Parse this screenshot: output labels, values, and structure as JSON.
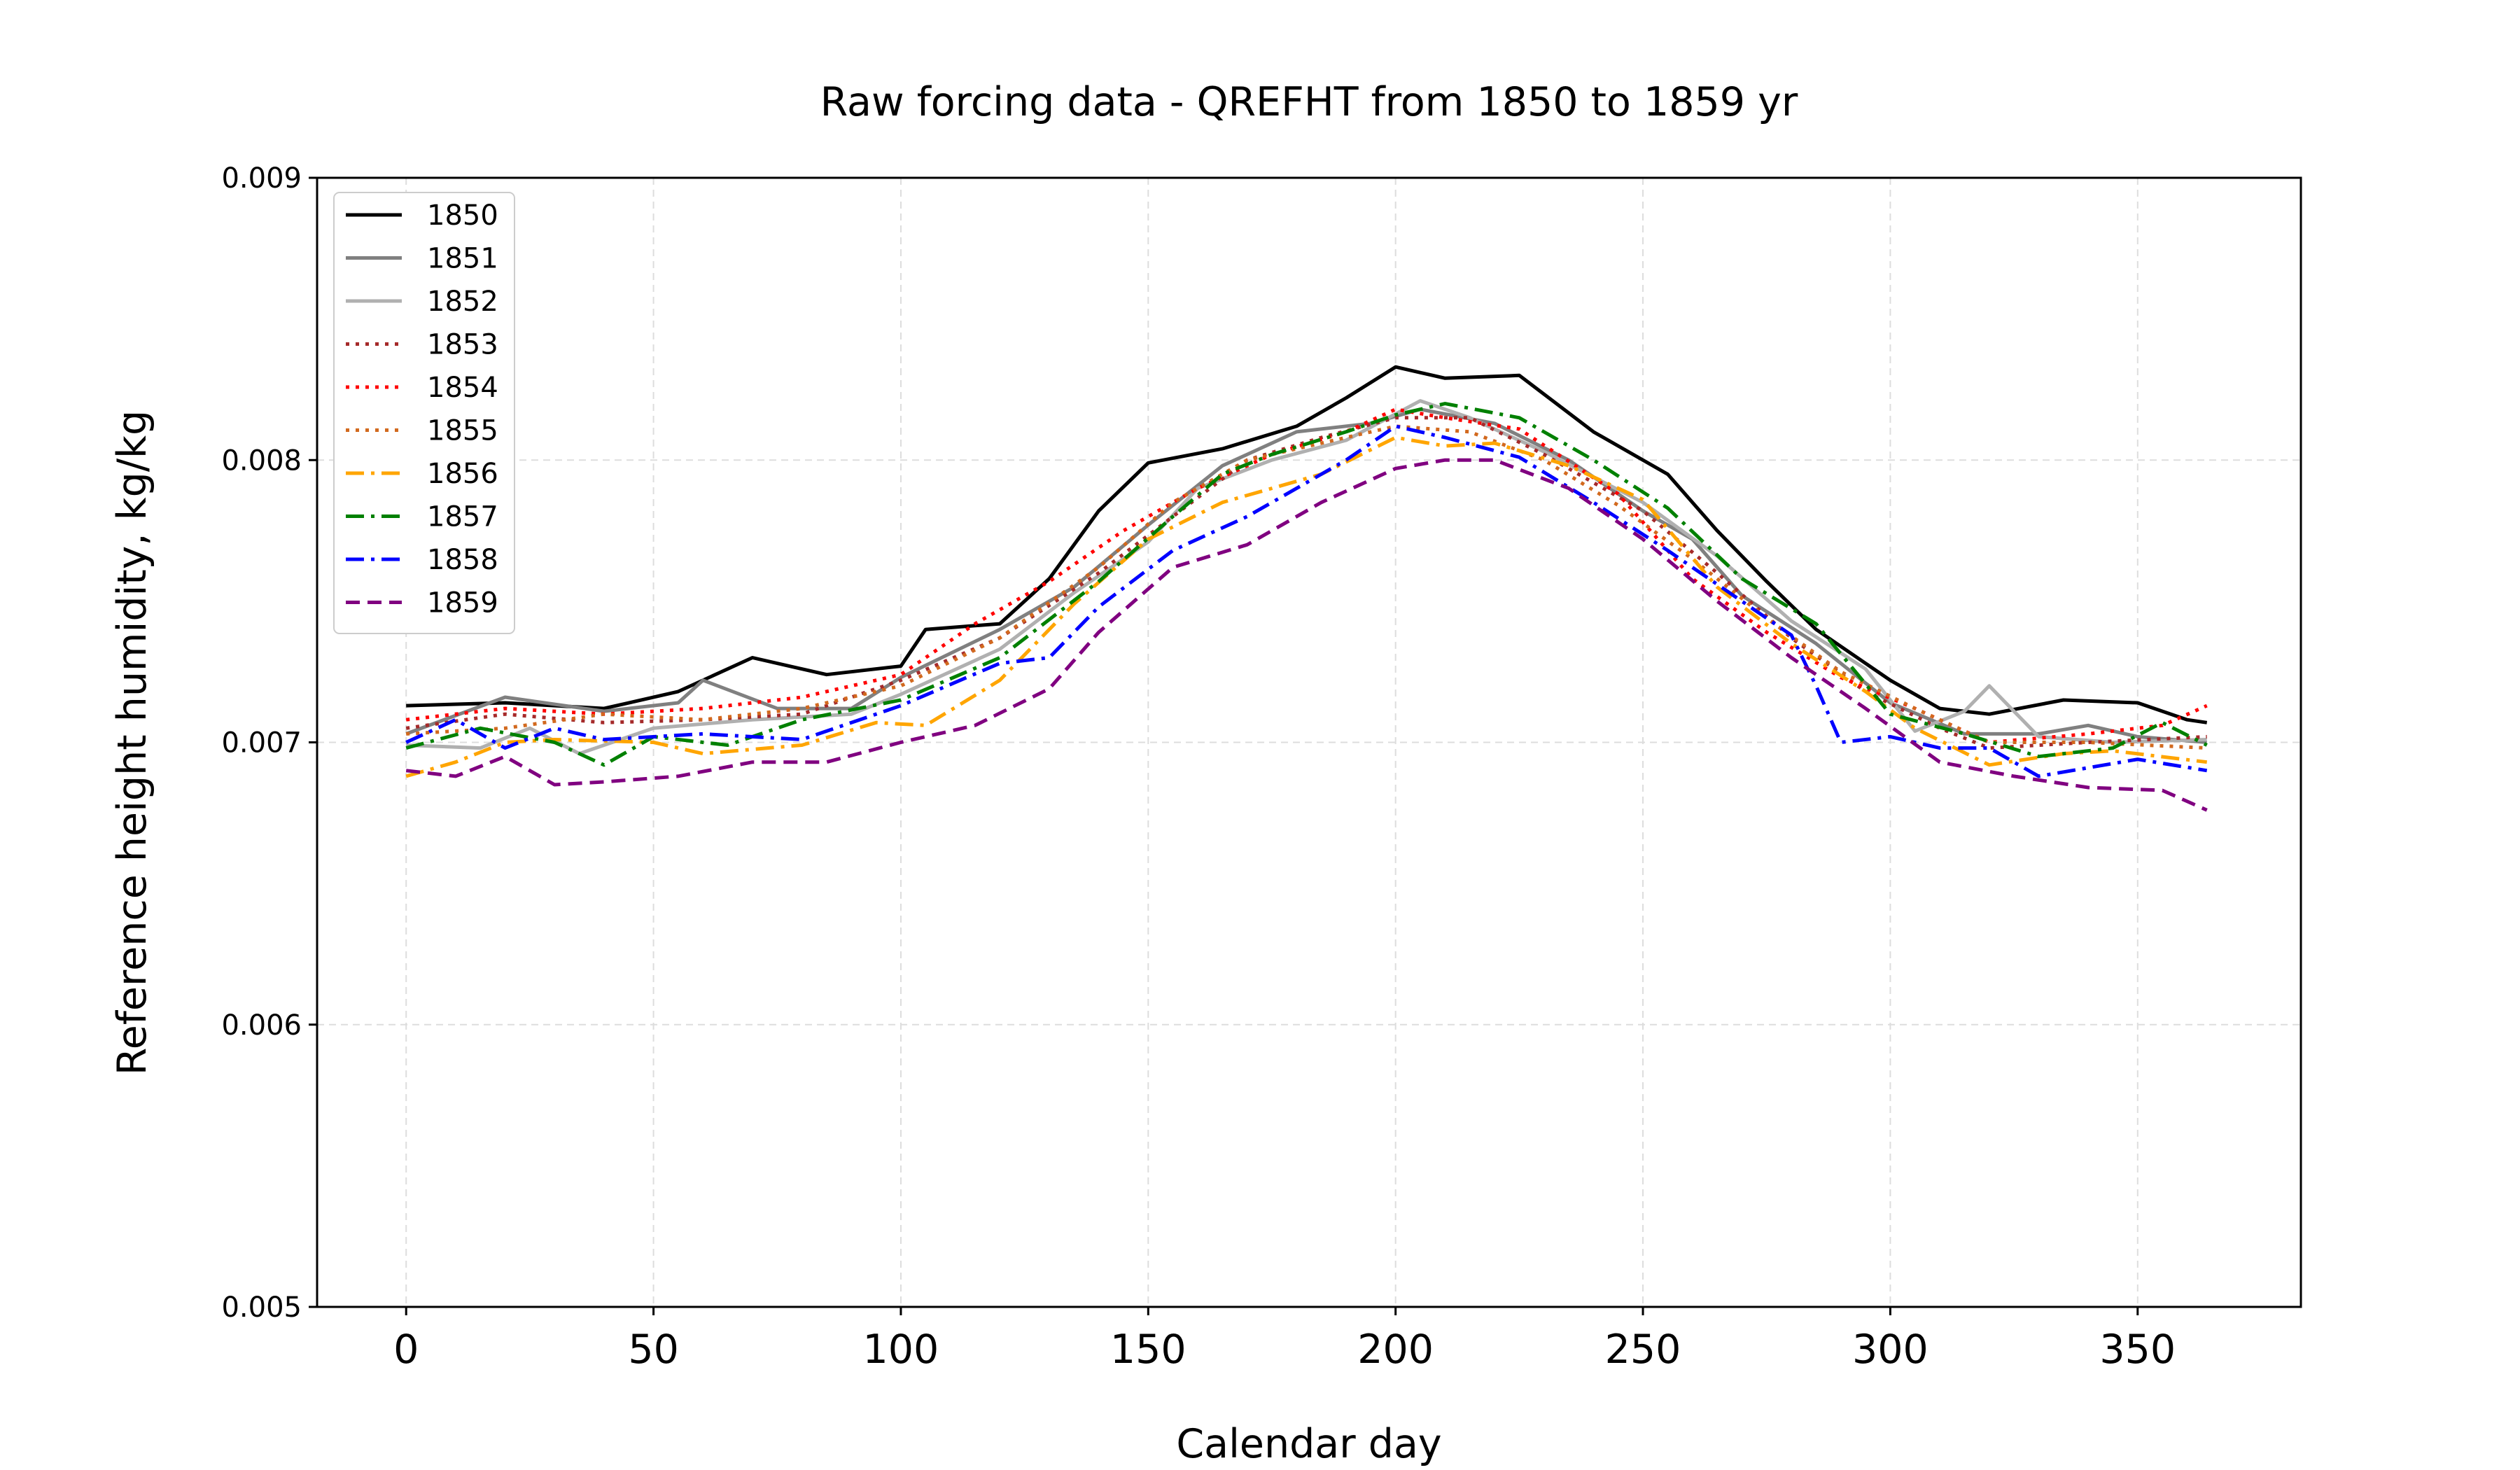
{
  "chart_data": {
    "type": "line",
    "title": "Raw forcing data - QREFHT from 1850 to 1859 yr",
    "xlabel": "Calendar day",
    "ylabel": "Reference height humidity, kg/kg",
    "xlim": [
      -18,
      383
    ],
    "ylim": [
      0.005,
      0.009
    ],
    "x_ticks": [
      0,
      50,
      100,
      150,
      200,
      250,
      300,
      350
    ],
    "x_tick_labels": [
      "0",
      "50",
      "100",
      "150",
      "200",
      "250",
      "300",
      "350"
    ],
    "y_ticks": [
      0.005,
      0.006,
      0.007,
      0.008,
      0.009
    ],
    "y_tick_labels": [
      "0.005",
      "0.006",
      "0.007",
      "0.008",
      "0.009"
    ],
    "grid": true,
    "legend_position": "top-left",
    "series": [
      {
        "name": "1850",
        "color": "#000000",
        "dash": "solid",
        "points": [
          [
            0,
            0.00713
          ],
          [
            20,
            0.00714
          ],
          [
            40,
            0.00712
          ],
          [
            55,
            0.00718
          ],
          [
            70,
            0.0073
          ],
          [
            85,
            0.00724
          ],
          [
            100,
            0.00727
          ],
          [
            105,
            0.0074
          ],
          [
            120,
            0.00742
          ],
          [
            130,
            0.00758
          ],
          [
            140,
            0.00782
          ],
          [
            150,
            0.00799
          ],
          [
            165,
            0.00804
          ],
          [
            180,
            0.00812
          ],
          [
            190,
            0.00822
          ],
          [
            200,
            0.00833
          ],
          [
            210,
            0.00829
          ],
          [
            225,
            0.0083
          ],
          [
            240,
            0.0081
          ],
          [
            255,
            0.00795
          ],
          [
            265,
            0.00775
          ],
          [
            275,
            0.00757
          ],
          [
            285,
            0.0074
          ],
          [
            300,
            0.00722
          ],
          [
            310,
            0.00712
          ],
          [
            320,
            0.0071
          ],
          [
            335,
            0.00715
          ],
          [
            350,
            0.00714
          ],
          [
            360,
            0.00708
          ],
          [
            364,
            0.00707
          ]
        ]
      },
      {
        "name": "1851",
        "color": "#808080",
        "dash": "solid",
        "points": [
          [
            0,
            0.00703
          ],
          [
            20,
            0.00716
          ],
          [
            40,
            0.00711
          ],
          [
            55,
            0.00714
          ],
          [
            60,
            0.00722
          ],
          [
            75,
            0.00712
          ],
          [
            90,
            0.00712
          ],
          [
            100,
            0.00723
          ],
          [
            120,
            0.0074
          ],
          [
            135,
            0.00755
          ],
          [
            150,
            0.00777
          ],
          [
            165,
            0.00798
          ],
          [
            180,
            0.0081
          ],
          [
            195,
            0.00813
          ],
          [
            205,
            0.00818
          ],
          [
            220,
            0.00813
          ],
          [
            235,
            0.008
          ],
          [
            250,
            0.00782
          ],
          [
            260,
            0.00772
          ],
          [
            270,
            0.00752
          ],
          [
            285,
            0.00735
          ],
          [
            300,
            0.00714
          ],
          [
            315,
            0.00703
          ],
          [
            330,
            0.00703
          ],
          [
            340,
            0.00706
          ],
          [
            350,
            0.00702
          ],
          [
            364,
            0.007
          ]
        ]
      },
      {
        "name": "1852",
        "color": "#b0b0b0",
        "dash": "solid",
        "points": [
          [
            0,
            0.00699
          ],
          [
            15,
            0.00698
          ],
          [
            25,
            0.00705
          ],
          [
            35,
            0.00696
          ],
          [
            50,
            0.00705
          ],
          [
            70,
            0.00708
          ],
          [
            90,
            0.0071
          ],
          [
            100,
            0.00717
          ],
          [
            120,
            0.00733
          ],
          [
            135,
            0.00753
          ],
          [
            150,
            0.00771
          ],
          [
            160,
            0.0079
          ],
          [
            175,
            0.008
          ],
          [
            190,
            0.00807
          ],
          [
            205,
            0.00821
          ],
          [
            215,
            0.00815
          ],
          [
            230,
            0.00803
          ],
          [
            250,
            0.00785
          ],
          [
            265,
            0.00766
          ],
          [
            280,
            0.00743
          ],
          [
            295,
            0.00726
          ],
          [
            305,
            0.00704
          ],
          [
            315,
            0.00711
          ],
          [
            320,
            0.0072
          ],
          [
            330,
            0.00702
          ],
          [
            345,
            0.007
          ],
          [
            364,
            0.00701
          ]
        ]
      },
      {
        "name": "1853",
        "color": "#a52a2a",
        "dash": "dot",
        "points": [
          [
            0,
            0.00705
          ],
          [
            20,
            0.0071
          ],
          [
            40,
            0.00707
          ],
          [
            60,
            0.00708
          ],
          [
            80,
            0.0071
          ],
          [
            100,
            0.00722
          ],
          [
            120,
            0.00737
          ],
          [
            140,
            0.0076
          ],
          [
            155,
            0.0078
          ],
          [
            170,
            0.008
          ],
          [
            185,
            0.00808
          ],
          [
            200,
            0.00815
          ],
          [
            215,
            0.00815
          ],
          [
            230,
            0.00802
          ],
          [
            250,
            0.00782
          ],
          [
            265,
            0.0076
          ],
          [
            280,
            0.00737
          ],
          [
            295,
            0.00718
          ],
          [
            310,
            0.00705
          ],
          [
            320,
            0.00698
          ],
          [
            340,
            0.007
          ],
          [
            364,
            0.00702
          ]
        ]
      },
      {
        "name": "1854",
        "color": "#ff0000",
        "dash": "dot",
        "points": [
          [
            0,
            0.00708
          ],
          [
            20,
            0.00712
          ],
          [
            40,
            0.0071
          ],
          [
            60,
            0.00712
          ],
          [
            80,
            0.00716
          ],
          [
            100,
            0.00724
          ],
          [
            115,
            0.00742
          ],
          [
            130,
            0.00757
          ],
          [
            145,
            0.00775
          ],
          [
            160,
            0.0079
          ],
          [
            175,
            0.00802
          ],
          [
            190,
            0.0081
          ],
          [
            200,
            0.00818
          ],
          [
            210,
            0.00815
          ],
          [
            225,
            0.00811
          ],
          [
            245,
            0.00788
          ],
          [
            260,
            0.00758
          ],
          [
            275,
            0.00739
          ],
          [
            290,
            0.00723
          ],
          [
            305,
            0.00712
          ],
          [
            320,
            0.007
          ],
          [
            340,
            0.00703
          ],
          [
            355,
            0.00706
          ],
          [
            364,
            0.00713
          ]
        ]
      },
      {
        "name": "1855",
        "color": "#d2691e",
        "dash": "dot",
        "points": [
          [
            0,
            0.00703
          ],
          [
            20,
            0.00705
          ],
          [
            40,
            0.0071
          ],
          [
            60,
            0.00708
          ],
          [
            80,
            0.00712
          ],
          [
            100,
            0.0072
          ],
          [
            120,
            0.00737
          ],
          [
            140,
            0.00762
          ],
          [
            155,
            0.00785
          ],
          [
            170,
            0.008
          ],
          [
            185,
            0.00806
          ],
          [
            200,
            0.00812
          ],
          [
            215,
            0.0081
          ],
          [
            230,
            0.008
          ],
          [
            245,
            0.00784
          ],
          [
            260,
            0.00765
          ],
          [
            275,
            0.00744
          ],
          [
            290,
            0.00725
          ],
          [
            305,
            0.00712
          ],
          [
            320,
            0.007
          ],
          [
            340,
            0.007
          ],
          [
            364,
            0.00698
          ]
        ]
      },
      {
        "name": "1856",
        "color": "#ffa500",
        "dash": "dashdot",
        "points": [
          [
            0,
            0.00688
          ],
          [
            10,
            0.00693
          ],
          [
            20,
            0.007
          ],
          [
            30,
            0.00701
          ],
          [
            50,
            0.007
          ],
          [
            60,
            0.00696
          ],
          [
            80,
            0.00699
          ],
          [
            95,
            0.00707
          ],
          [
            105,
            0.00706
          ],
          [
            120,
            0.00722
          ],
          [
            135,
            0.00749
          ],
          [
            150,
            0.00772
          ],
          [
            165,
            0.00785
          ],
          [
            175,
            0.0079
          ],
          [
            185,
            0.00795
          ],
          [
            200,
            0.00808
          ],
          [
            210,
            0.00805
          ],
          [
            220,
            0.00806
          ],
          [
            235,
            0.00798
          ],
          [
            250,
            0.00786
          ],
          [
            265,
            0.00755
          ],
          [
            280,
            0.00735
          ],
          [
            295,
            0.00718
          ],
          [
            305,
            0.00705
          ],
          [
            320,
            0.00692
          ],
          [
            335,
            0.00696
          ],
          [
            345,
            0.00697
          ],
          [
            364,
            0.00693
          ]
        ]
      },
      {
        "name": "1857",
        "color": "#008000",
        "dash": "dashdot",
        "points": [
          [
            0,
            0.00698
          ],
          [
            15,
            0.00705
          ],
          [
            30,
            0.007
          ],
          [
            40,
            0.00692
          ],
          [
            50,
            0.00702
          ],
          [
            65,
            0.00699
          ],
          [
            80,
            0.00708
          ],
          [
            100,
            0.00715
          ],
          [
            120,
            0.0073
          ],
          [
            140,
            0.00757
          ],
          [
            155,
            0.0078
          ],
          [
            165,
            0.00795
          ],
          [
            175,
            0.00802
          ],
          [
            190,
            0.0081
          ],
          [
            200,
            0.00816
          ],
          [
            210,
            0.0082
          ],
          [
            225,
            0.00815
          ],
          [
            240,
            0.008
          ],
          [
            255,
            0.00783
          ],
          [
            270,
            0.00758
          ],
          [
            285,
            0.00742
          ],
          [
            300,
            0.0071
          ],
          [
            315,
            0.00703
          ],
          [
            330,
            0.00695
          ],
          [
            345,
            0.00698
          ],
          [
            355,
            0.00707
          ],
          [
            364,
            0.00699
          ]
        ]
      },
      {
        "name": "1858",
        "color": "#0000ff",
        "dash": "dashdot",
        "points": [
          [
            0,
            0.007
          ],
          [
            10,
            0.00708
          ],
          [
            20,
            0.00698
          ],
          [
            30,
            0.00705
          ],
          [
            40,
            0.00701
          ],
          [
            60,
            0.00703
          ],
          [
            80,
            0.00701
          ],
          [
            100,
            0.00713
          ],
          [
            120,
            0.00728
          ],
          [
            130,
            0.0073
          ],
          [
            140,
            0.00748
          ],
          [
            155,
            0.00768
          ],
          [
            170,
            0.0078
          ],
          [
            180,
            0.0079
          ],
          [
            190,
            0.008
          ],
          [
            200,
            0.00812
          ],
          [
            210,
            0.00808
          ],
          [
            225,
            0.00801
          ],
          [
            240,
            0.00785
          ],
          [
            255,
            0.00768
          ],
          [
            270,
            0.0075
          ],
          [
            280,
            0.00738
          ],
          [
            285,
            0.0072
          ],
          [
            290,
            0.007
          ],
          [
            300,
            0.00702
          ],
          [
            310,
            0.00698
          ],
          [
            320,
            0.00698
          ],
          [
            330,
            0.00688
          ],
          [
            340,
            0.00691
          ],
          [
            350,
            0.00694
          ],
          [
            364,
            0.0069
          ]
        ]
      },
      {
        "name": "1859",
        "color": "#800080",
        "dash": "dash",
        "points": [
          [
            0,
            0.0069
          ],
          [
            10,
            0.00688
          ],
          [
            20,
            0.00695
          ],
          [
            30,
            0.00685
          ],
          [
            40,
            0.00686
          ],
          [
            55,
            0.00688
          ],
          [
            70,
            0.00693
          ],
          [
            85,
            0.00693
          ],
          [
            100,
            0.007
          ],
          [
            115,
            0.00706
          ],
          [
            130,
            0.00719
          ],
          [
            140,
            0.00739
          ],
          [
            155,
            0.00762
          ],
          [
            170,
            0.0077
          ],
          [
            185,
            0.00785
          ],
          [
            200,
            0.00797
          ],
          [
            210,
            0.008
          ],
          [
            220,
            0.008
          ],
          [
            235,
            0.0079
          ],
          [
            250,
            0.00772
          ],
          [
            265,
            0.0075
          ],
          [
            280,
            0.0073
          ],
          [
            295,
            0.00712
          ],
          [
            310,
            0.00693
          ],
          [
            325,
            0.00688
          ],
          [
            340,
            0.00684
          ],
          [
            355,
            0.00683
          ],
          [
            364,
            0.00676
          ]
        ]
      }
    ]
  }
}
